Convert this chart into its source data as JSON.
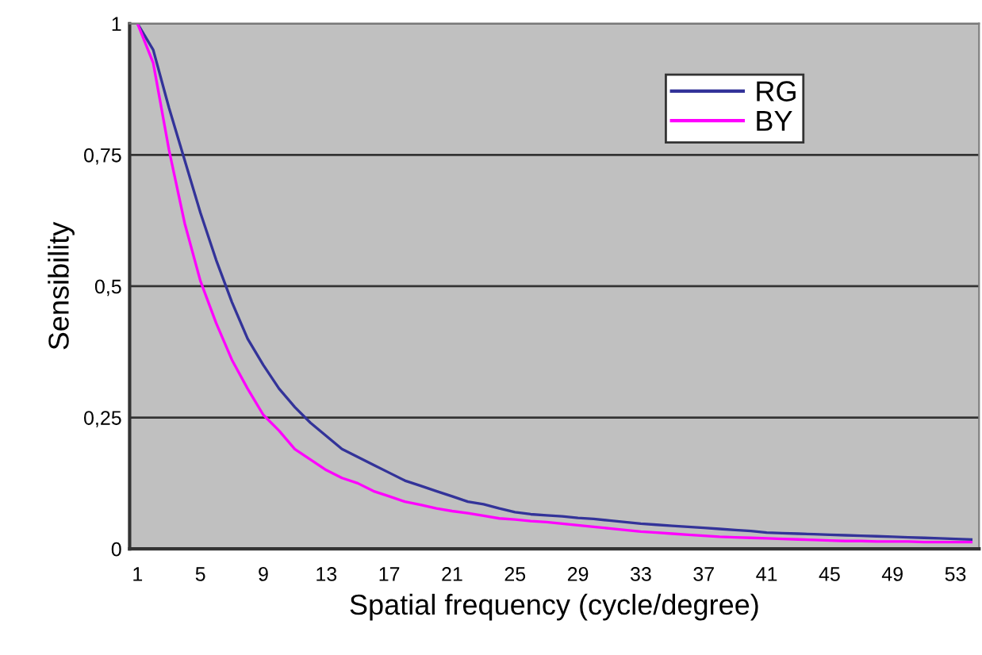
{
  "chart_data": {
    "type": "line",
    "xlabel": "Spatial frequency (cycle/degree)",
    "ylabel": "Sensibility",
    "categories": [
      "1",
      null,
      null,
      null,
      "5",
      null,
      null,
      null,
      "9",
      null,
      null,
      null,
      "13",
      null,
      null,
      null,
      "17",
      null,
      null,
      null,
      "21",
      null,
      null,
      null,
      "25",
      null,
      null,
      null,
      "29",
      null,
      null,
      null,
      "33",
      null,
      null,
      null,
      "37",
      null,
      null,
      null,
      "41",
      null,
      null,
      null,
      "45",
      null,
      null,
      null,
      "49",
      null,
      null,
      null,
      "53",
      null
    ],
    "series": [
      {
        "name": "RG",
        "color": "#333399",
        "values": [
          1,
          0.95,
          0.84,
          0.74,
          0.64,
          0.55,
          0.47,
          0.4,
          0.35,
          0.305,
          0.27,
          0.24,
          0.215,
          0.19,
          0.175,
          0.16,
          0.145,
          0.13,
          0.12,
          0.11,
          0.1,
          0.09,
          0.085,
          0.077,
          0.07,
          0.066,
          0.064,
          0.062,
          0.059,
          0.057,
          0.054,
          0.051,
          0.048,
          0.046,
          0.044,
          0.042,
          0.04,
          0.038,
          0.036,
          0.034,
          0.031,
          0.03,
          0.029,
          0.028,
          0.027,
          0.026,
          0.025,
          0.024,
          0.023,
          0.022,
          0.021,
          0.02,
          0.019,
          0.018
        ]
      },
      {
        "name": "BY",
        "color": "#ff00ff",
        "values": [
          1,
          0.925,
          0.76,
          0.62,
          0.51,
          0.43,
          0.36,
          0.305,
          0.255,
          0.225,
          0.19,
          0.17,
          0.15,
          0.135,
          0.125,
          0.11,
          0.1,
          0.09,
          0.084,
          0.077,
          0.072,
          0.068,
          0.063,
          0.058,
          0.056,
          0.053,
          0.051,
          0.048,
          0.045,
          0.042,
          0.039,
          0.036,
          0.033,
          0.031,
          0.029,
          0.027,
          0.025,
          0.023,
          0.022,
          0.021,
          0.02,
          0.019,
          0.018,
          0.017,
          0.016,
          0.015,
          0.015,
          0.014,
          0.014,
          0.014,
          0.013,
          0.013,
          0.013,
          0.013
        ]
      }
    ],
    "ylim": [
      0,
      1
    ],
    "yticks": [
      {
        "value": 0,
        "label": "0"
      },
      {
        "value": 0.25,
        "label": "0,25"
      },
      {
        "value": 0.5,
        "label": "0,5"
      },
      {
        "value": 0.75,
        "label": "0,75"
      },
      {
        "value": 1,
        "label": "1"
      }
    ],
    "grid": "y",
    "legend": "top right",
    "marker": "none",
    "line_style": "solid"
  }
}
